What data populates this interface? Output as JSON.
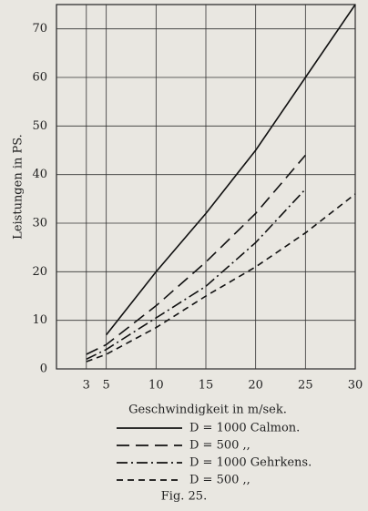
{
  "chart_data": {
    "type": "line",
    "x_label": "Geschwindigkeit in m/sek.",
    "y_label": "Leistungen in PS.",
    "caption": "Fig. 25.",
    "xlim": [
      0,
      30
    ],
    "xticks": [
      3,
      5,
      10,
      15,
      20,
      25,
      30
    ],
    "ylim": [
      0,
      75
    ],
    "yticks": [
      0,
      10,
      20,
      30,
      40,
      50,
      60,
      70
    ],
    "grid": true,
    "series": [
      {
        "name": "D = 1000 Calmon.",
        "color": "#111111",
        "style": "solid",
        "x": [
          5,
          10,
          15,
          20,
          25,
          30
        ],
        "values": [
          7,
          20,
          32,
          45,
          60,
          75
        ]
      },
      {
        "name": "D = 500 ,,",
        "color": "#111111",
        "style": "longdash",
        "x": [
          3,
          5,
          10,
          15,
          20,
          25
        ],
        "values": [
          3,
          5,
          13,
          22,
          32,
          44
        ]
      },
      {
        "name": "D = 1000 Gehrkens.",
        "color": "#111111",
        "style": "dashdot",
        "x": [
          3,
          5,
          10,
          15,
          20,
          25
        ],
        "values": [
          2,
          4,
          10.5,
          17,
          26,
          37
        ]
      },
      {
        "name": "D = 500 ,,",
        "color": "#111111",
        "style": "dashed",
        "x": [
          3,
          5,
          10,
          15,
          20,
          25,
          30
        ],
        "values": [
          1.5,
          3,
          8.5,
          15,
          21,
          28,
          36
        ]
      }
    ]
  }
}
